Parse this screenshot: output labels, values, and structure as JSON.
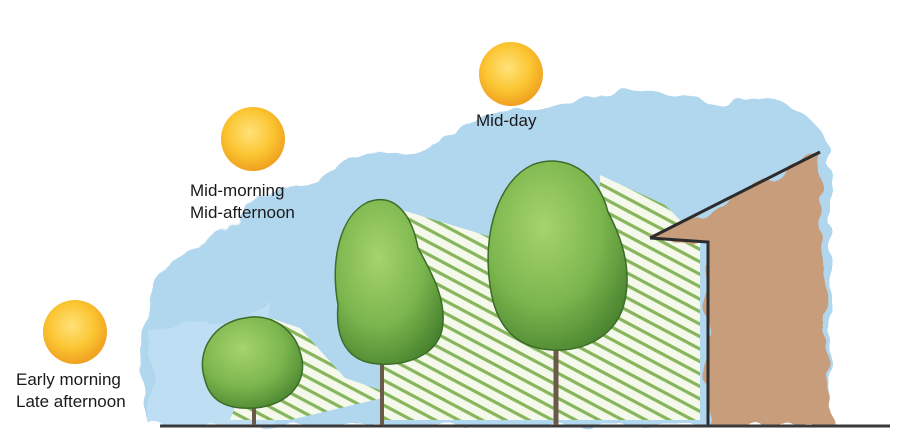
{
  "labels": {
    "early": [
      "Early morning",
      "Late afternoon"
    ],
    "mid": [
      "Mid-morning",
      "Mid-afternoon"
    ],
    "midday": "Mid-day"
  },
  "colors": {
    "sky": "#a9d3ee",
    "sun_core": "#fbc531",
    "sun_edge": "#f0a020",
    "foliage_light": "#8dc25b",
    "foliage_dark": "#4f8f33",
    "shade_stripes": "#7fae54",
    "house_wall": "#c79d7c",
    "ground": "#3a3a3a",
    "trunk": "#6b5a4a"
  },
  "icons": [
    "sun-icon",
    "tree-icon",
    "house-icon"
  ]
}
